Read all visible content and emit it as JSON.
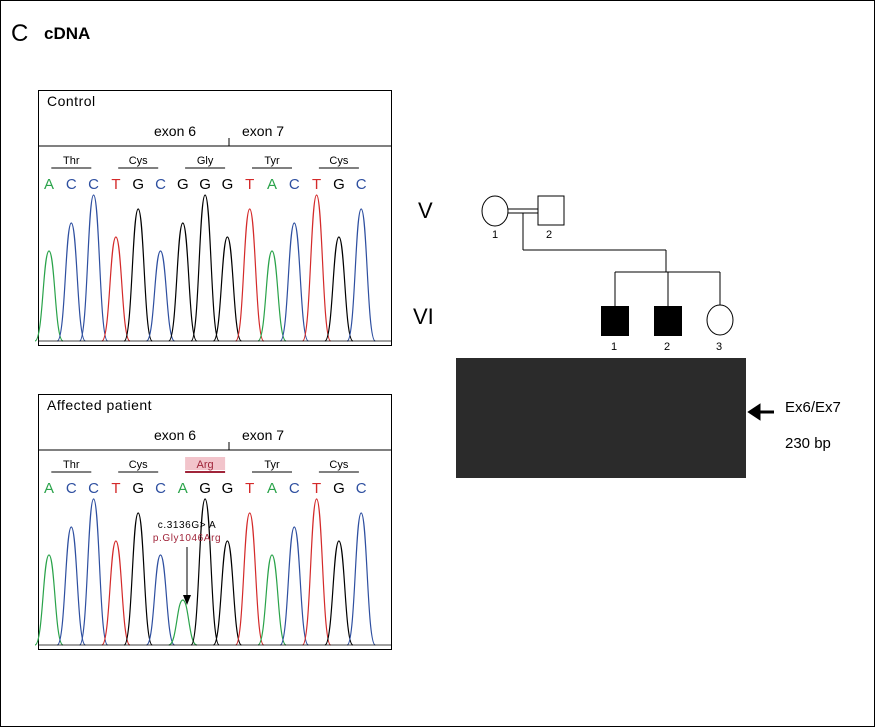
{
  "panel": {
    "letter": "C",
    "title": "cDNA"
  },
  "control": {
    "label": "Control",
    "exon_left": "exon 6",
    "exon_right": "exon 7",
    "codons": [
      "Thr",
      "Cys",
      "Gly",
      "Tyr",
      "Cys"
    ],
    "bases": [
      "A",
      "C",
      "C",
      "T",
      "G",
      "C",
      "G",
      "G",
      "G",
      "T",
      "A",
      "C",
      "T",
      "G",
      "C"
    ]
  },
  "patient": {
    "label": "Affected patient",
    "exon_left": "exon 6",
    "exon_right": "exon 7",
    "codons": [
      "Thr",
      "Cys",
      "Arg",
      "Tyr",
      "Cys"
    ],
    "bases": [
      "A",
      "C",
      "C",
      "T",
      "G",
      "C",
      "A",
      "G",
      "G",
      "T",
      "A",
      "C",
      "T",
      "G",
      "C"
    ],
    "mutation_cdna": "c.3136G> A",
    "mutation_protein": "p.Gly1046Arg"
  },
  "pedigree": {
    "gen_v": "V",
    "gen_vi": "VI",
    "v_individuals": [
      "1",
      "2"
    ],
    "vi_individuals": [
      "1",
      "2",
      "3"
    ]
  },
  "gel": {
    "band_label": "Ex6/Ex7",
    "size_label": "230 bp"
  },
  "colors": {
    "A": "#2aa34a",
    "C": "#2e4fa0",
    "G": "#000000",
    "T": "#d42a2a",
    "mutation_text": "#a0253a",
    "highlight": "#f2c4cb"
  }
}
